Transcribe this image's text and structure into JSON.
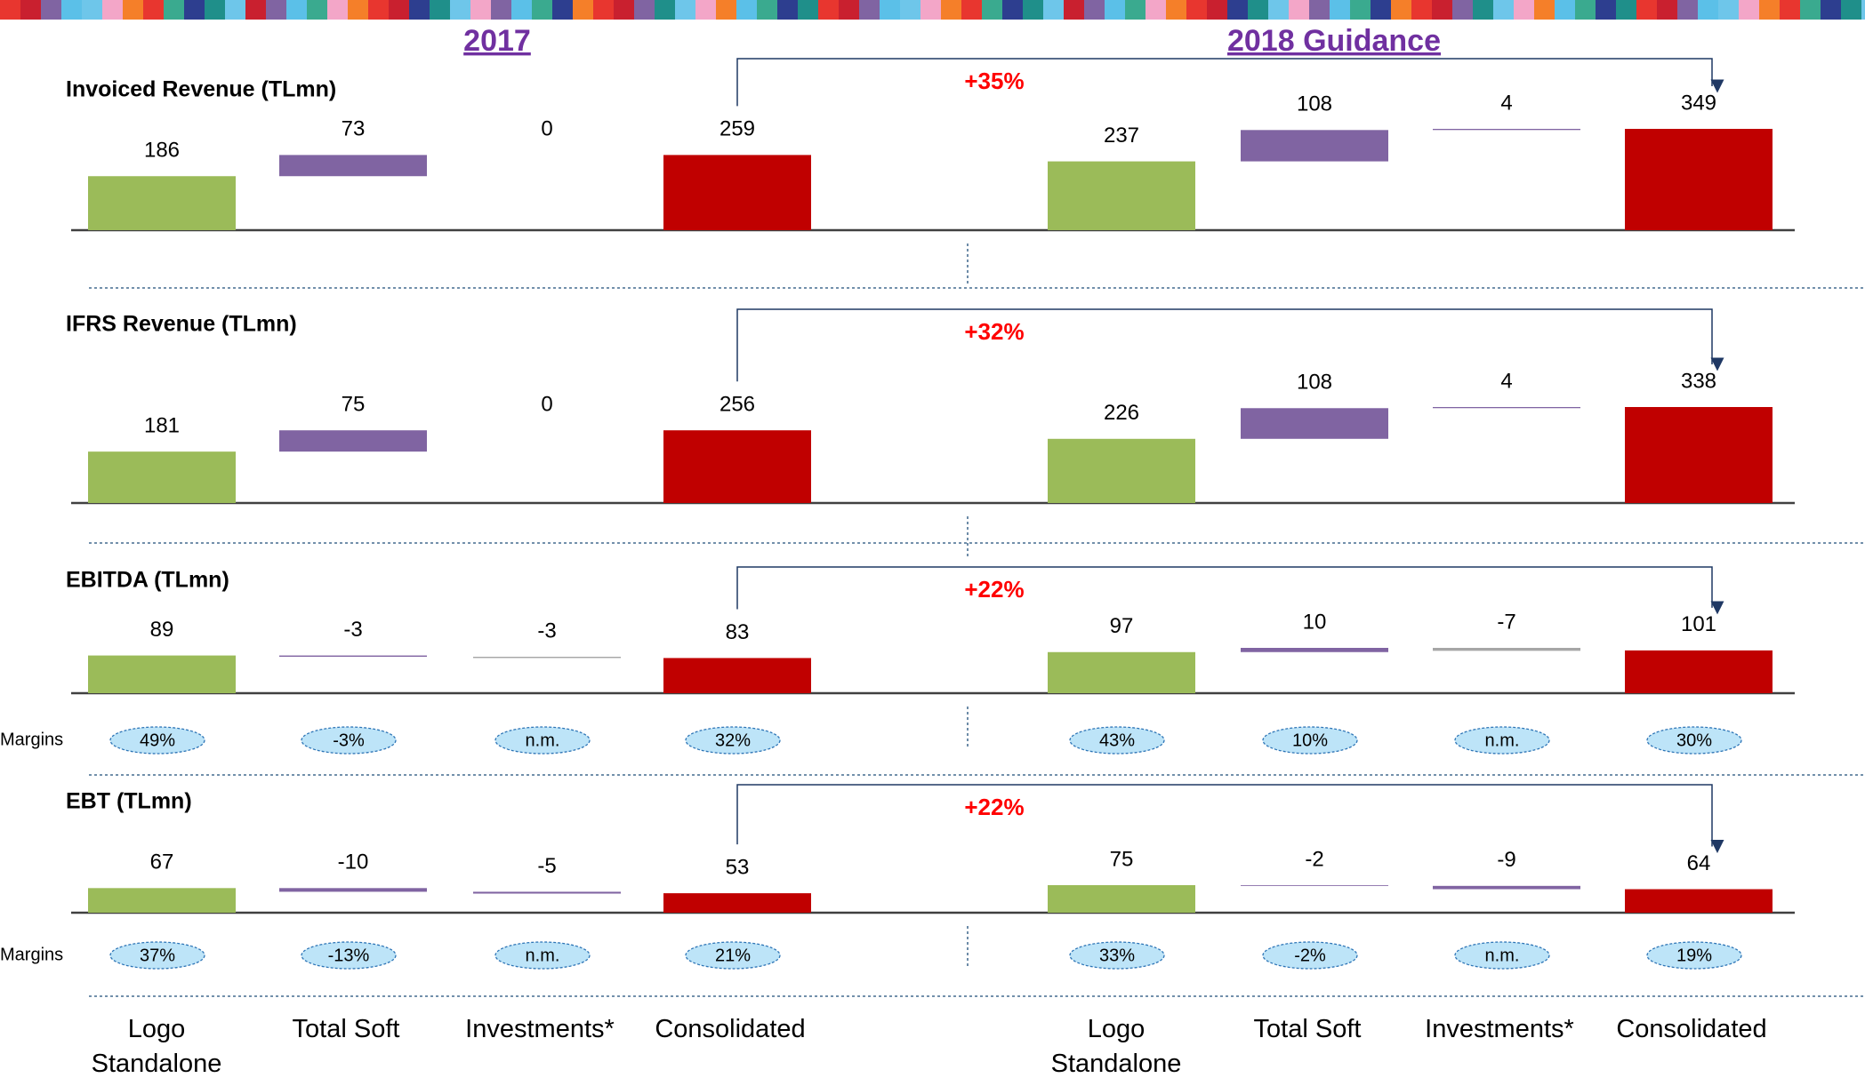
{
  "headers": [
    "2017",
    "2018 Guidance"
  ],
  "categories": [
    "Logo Standalone",
    "Total Soft",
    "Investments*",
    "Consolidated"
  ],
  "margins_label": "Margins",
  "chart_data": [
    {
      "type": "waterfall",
      "title": "Invoiced Revenue (TLmn)",
      "growth": "+35%",
      "colors": [
        "#9bbb59",
        "#8064a2",
        "#8064a2",
        "#c00000"
      ],
      "series": [
        {
          "values": [
            186,
            73,
            0,
            259
          ]
        },
        {
          "values": [
            237,
            108,
            4,
            349
          ]
        }
      ]
    },
    {
      "type": "waterfall",
      "title": "IFRS Revenue (TLmn)",
      "growth": "+32%",
      "colors": [
        "#9bbb59",
        "#8064a2",
        "#8064a2",
        "#c00000"
      ],
      "series": [
        {
          "values": [
            181,
            75,
            0,
            256
          ]
        },
        {
          "values": [
            226,
            108,
            4,
            338
          ]
        }
      ]
    },
    {
      "type": "waterfall",
      "title": "EBITDA (TLmn)",
      "growth": "+22%",
      "colors": [
        "#9bbb59",
        "#8064a2",
        "#a6a6a6",
        "#c00000"
      ],
      "series": [
        {
          "values": [
            89,
            -3,
            -3,
            83
          ],
          "margins": {
            "values": [
              49,
              -3,
              null,
              32
            ],
            "value_labels": [
              "49%",
              "-3%",
              "n.m.",
              "32%"
            ]
          }
        },
        {
          "values": [
            97,
            10,
            -7,
            101
          ],
          "margins": {
            "values": [
              43,
              10,
              null,
              30
            ],
            "value_labels": [
              "43%",
              "10%",
              "n.m.",
              "30%"
            ]
          }
        }
      ]
    },
    {
      "type": "waterfall",
      "title": "EBT (TLmn)",
      "growth": "+22%",
      "colors": [
        "#9bbb59",
        "#8064a2",
        "#8064a2",
        "#c00000"
      ],
      "series": [
        {
          "values": [
            67,
            -10,
            -5,
            53
          ],
          "margins": {
            "values": [
              37,
              -13,
              null,
              21
            ],
            "value_labels": [
              "37%",
              "-13%",
              "n.m.",
              "21%"
            ]
          }
        },
        {
          "values": [
            75,
            -2,
            -9,
            64
          ],
          "margins": {
            "values": [
              33,
              -2,
              null,
              19
            ],
            "value_labels": [
              "33%",
              "-2%",
              "n.m.",
              "19%"
            ]
          }
        }
      ]
    }
  ]
}
